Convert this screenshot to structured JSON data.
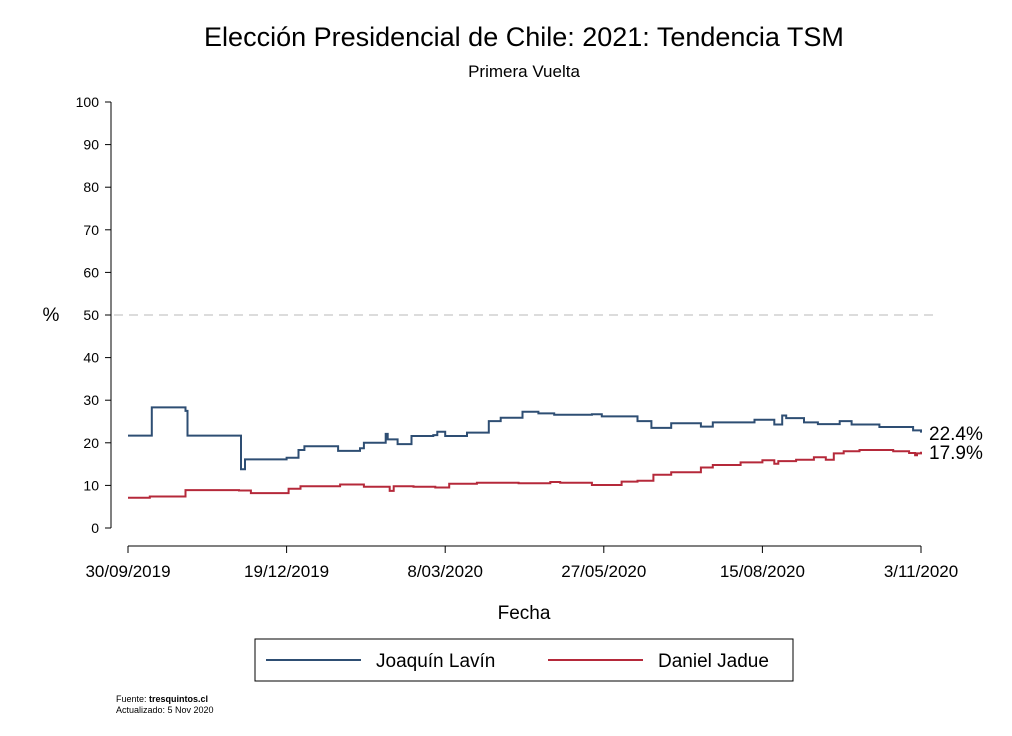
{
  "chart_data": {
    "type": "line",
    "title": "Elección Presidencial de Chile: 2021: Tendencia TSM",
    "subtitle": "Primera Vuelta",
    "xlabel": "Fecha",
    "ylabel": "%",
    "ylim": [
      0,
      100
    ],
    "yticks": [
      0,
      10,
      20,
      30,
      40,
      50,
      60,
      70,
      80,
      90,
      100
    ],
    "xticks": [
      "30/09/2019",
      "19/12/2019",
      "8/03/2020",
      "27/05/2020",
      "15/08/2020",
      "3/11/2020"
    ],
    "reference_line": 50,
    "grid": false,
    "legend_position": "bottom",
    "series": [
      {
        "name": "Joaquín Lavín",
        "color": "#2e4e73",
        "end_label": "22.4%",
        "points": [
          [
            "2019-09-30",
            21.7
          ],
          [
            "2019-10-12",
            28.3
          ],
          [
            "2019-10-29",
            27.5
          ],
          [
            "2019-10-30",
            21.7
          ],
          [
            "2019-11-25",
            21.7
          ],
          [
            "2019-11-26",
            13.8
          ],
          [
            "2019-11-28",
            16.1
          ],
          [
            "2019-12-19",
            16.5
          ],
          [
            "2019-12-25",
            18.3
          ],
          [
            "2019-12-28",
            19.2
          ],
          [
            "2020-01-14",
            18.1
          ],
          [
            "2020-01-25",
            18.7
          ],
          [
            "2020-01-27",
            20.0
          ],
          [
            "2020-02-07",
            22.1
          ],
          [
            "2020-02-08",
            20.8
          ],
          [
            "2020-02-13",
            19.7
          ],
          [
            "2020-02-20",
            21.6
          ],
          [
            "2020-03-02",
            21.8
          ],
          [
            "2020-03-04",
            22.6
          ],
          [
            "2020-03-08",
            21.6
          ],
          [
            "2020-03-19",
            22.4
          ],
          [
            "2020-03-30",
            25.1
          ],
          [
            "2020-04-05",
            25.9
          ],
          [
            "2020-04-16",
            27.3
          ],
          [
            "2020-04-24",
            26.9
          ],
          [
            "2020-05-02",
            26.6
          ],
          [
            "2020-05-21",
            26.7
          ],
          [
            "2020-05-26",
            26.2
          ],
          [
            "2020-06-13",
            25.1
          ],
          [
            "2020-06-20",
            23.5
          ],
          [
            "2020-06-30",
            24.6
          ],
          [
            "2020-07-15",
            23.8
          ],
          [
            "2020-07-21",
            24.8
          ],
          [
            "2020-08-11",
            25.4
          ],
          [
            "2020-08-21",
            24.3
          ],
          [
            "2020-08-25",
            26.4
          ],
          [
            "2020-08-27",
            25.8
          ],
          [
            "2020-09-05",
            24.8
          ],
          [
            "2020-09-12",
            24.4
          ],
          [
            "2020-09-23",
            25.1
          ],
          [
            "2020-09-29",
            24.3
          ],
          [
            "2020-10-13",
            23.7
          ],
          [
            "2020-10-30",
            22.9
          ],
          [
            "2020-11-03",
            22.4
          ]
        ]
      },
      {
        "name": "Daniel Jadue",
        "color": "#b5293a",
        "end_label": "17.9%",
        "points": [
          [
            "2019-09-30",
            7.1
          ],
          [
            "2019-10-11",
            7.4
          ],
          [
            "2019-10-29",
            8.9
          ],
          [
            "2019-11-25",
            8.8
          ],
          [
            "2019-12-01",
            8.2
          ],
          [
            "2019-12-20",
            9.2
          ],
          [
            "2019-12-26",
            9.8
          ],
          [
            "2020-01-15",
            10.2
          ],
          [
            "2020-01-27",
            9.7
          ],
          [
            "2020-02-09",
            8.7
          ],
          [
            "2020-02-11",
            9.8
          ],
          [
            "2020-02-21",
            9.7
          ],
          [
            "2020-03-03",
            9.5
          ],
          [
            "2020-03-10",
            10.4
          ],
          [
            "2020-03-24",
            10.6
          ],
          [
            "2020-04-14",
            10.5
          ],
          [
            "2020-04-30",
            10.8
          ],
          [
            "2020-05-05",
            10.6
          ],
          [
            "2020-05-21",
            10.1
          ],
          [
            "2020-06-05",
            10.9
          ],
          [
            "2020-06-13",
            11.1
          ],
          [
            "2020-06-21",
            12.5
          ],
          [
            "2020-06-30",
            13.1
          ],
          [
            "2020-07-15",
            14.2
          ],
          [
            "2020-07-21",
            14.8
          ],
          [
            "2020-08-04",
            15.4
          ],
          [
            "2020-08-15",
            15.9
          ],
          [
            "2020-08-21",
            15.1
          ],
          [
            "2020-08-23",
            15.7
          ],
          [
            "2020-09-01",
            16.0
          ],
          [
            "2020-09-10",
            16.6
          ],
          [
            "2020-09-16",
            16.0
          ],
          [
            "2020-09-20",
            17.5
          ],
          [
            "2020-09-25",
            18.0
          ],
          [
            "2020-10-03",
            18.3
          ],
          [
            "2020-10-20",
            18.0
          ],
          [
            "2020-10-28",
            17.6
          ],
          [
            "2020-10-31",
            17.1
          ],
          [
            "2020-11-01",
            17.5
          ],
          [
            "2020-11-03",
            17.9
          ]
        ]
      }
    ]
  },
  "footnote": {
    "source_prefix": "Fuente: ",
    "source_name": "tresquintos.cl",
    "updated": "Actualizado: 5 Nov 2020"
  }
}
